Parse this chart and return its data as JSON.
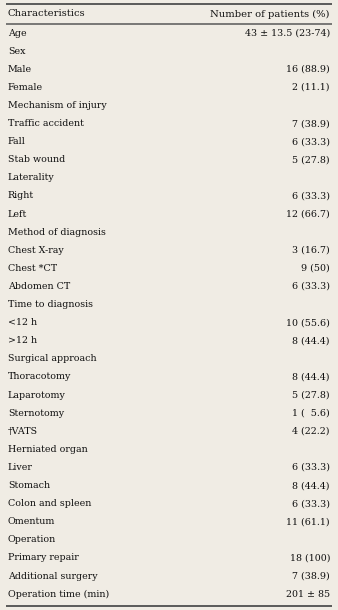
{
  "col1_header": "Characteristics",
  "col2_header": "Number of patients (%)",
  "rows": [
    {
      "label": "Age",
      "value": "43 ± 13.5 (23-74)"
    },
    {
      "label": "Sex",
      "value": ""
    },
    {
      "label": "Male",
      "value": "16 (88.9)"
    },
    {
      "label": "Female",
      "value": "2 (11.1)"
    },
    {
      "label": "Mechanism of injury",
      "value": ""
    },
    {
      "label": "Traffic accident",
      "value": "7 (38.9)"
    },
    {
      "label": "Fall",
      "value": "6 (33.3)"
    },
    {
      "label": "Stab wound",
      "value": "5 (27.8)"
    },
    {
      "label": "Laterality",
      "value": ""
    },
    {
      "label": "Right",
      "value": "6 (33.3)"
    },
    {
      "label": "Left",
      "value": "12 (66.7)"
    },
    {
      "label": "Method of diagnosis",
      "value": ""
    },
    {
      "label": "Chest X-ray",
      "value": "3 (16.7)"
    },
    {
      "label": "Chest *CT",
      "value": "9 (50)"
    },
    {
      "label": "Abdomen CT",
      "value": "6 (33.3)"
    },
    {
      "label": "Time to diagnosis",
      "value": ""
    },
    {
      "label": "<12 h",
      "value": "10 (55.6)"
    },
    {
      "label": ">12 h",
      "value": "8 (44.4)"
    },
    {
      "label": "Surgical approach",
      "value": ""
    },
    {
      "label": "Thoracotomy",
      "value": "8 (44.4)"
    },
    {
      "label": "Laparotomy",
      "value": "5 (27.8)"
    },
    {
      "label": "Sternotomy",
      "value": "1 (  5.6)"
    },
    {
      "label": "†VATS",
      "value": "4 (22.2)"
    },
    {
      "label": "Herniated organ",
      "value": ""
    },
    {
      "label": "Liver",
      "value": "6 (33.3)"
    },
    {
      "label": "Stomach",
      "value": "8 (44.4)"
    },
    {
      "label": "Colon and spleen",
      "value": "6 (33.3)"
    },
    {
      "label": "Omentum",
      "value": "11 (61.1)"
    },
    {
      "label": "Operation",
      "value": ""
    },
    {
      "label": "Primary repair",
      "value": "18 (100)"
    },
    {
      "label": "Additional surgery",
      "value": "7 (38.9)"
    },
    {
      "label": "Operation time (min)",
      "value": "201 ± 85"
    }
  ],
  "bg_color": "#f0ece4",
  "line_color": "#555555",
  "text_color": "#111111",
  "font_size": 6.8,
  "header_font_size": 7.2
}
